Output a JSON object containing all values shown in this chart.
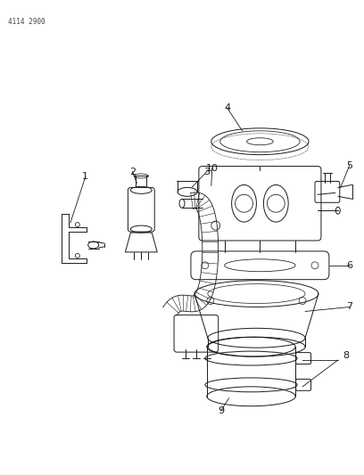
{
  "header_text": "4114 2900",
  "background_color": "#ffffff",
  "line_color": "#1a1a1a",
  "fig_width": 4.08,
  "fig_height": 5.33,
  "dpi": 100
}
